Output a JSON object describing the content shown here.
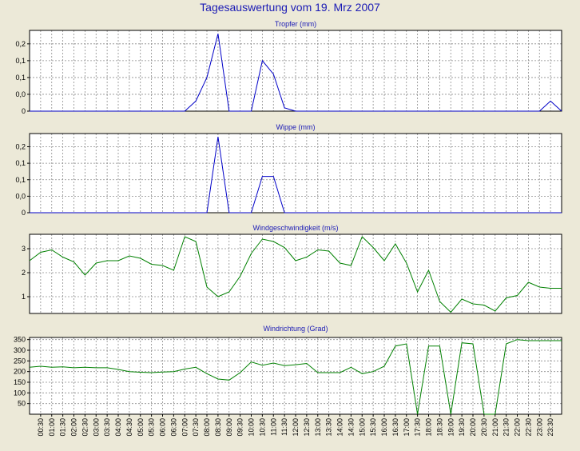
{
  "page": {
    "title": "Tagesauswertung vom 19. Mrz 2007"
  },
  "colors": {
    "background": "#ece9d8",
    "plot_background": "#ffffff",
    "grid": "#8c8c8c",
    "axis": "#000000",
    "title": "#1a1ab5",
    "rain_series": "#0000c8",
    "wind_series": "#008000"
  },
  "time_labels": [
    "00:30",
    "01:00",
    "01:30",
    "02:00",
    "02:30",
    "03:00",
    "03:30",
    "04:00",
    "04:30",
    "05:00",
    "05:30",
    "06:00",
    "06:30",
    "07:00",
    "07:30",
    "08:00",
    "08:30",
    "09:00",
    "09:30",
    "10:00",
    "10:30",
    "11:00",
    "11:30",
    "12:00",
    "12:30",
    "13:00",
    "13:30",
    "14:00",
    "14:30",
    "15:00",
    "15:30",
    "16:00",
    "16:30",
    "17:00",
    "17:30",
    "18:00",
    "18:30",
    "19:00",
    "19:30",
    "20:00",
    "20:30",
    "21:00",
    "21:30",
    "22:00",
    "22:30",
    "23:00",
    "23:30"
  ],
  "chart_data": [
    {
      "type": "line",
      "title": "Tropfer (mm)",
      "ylim": [
        0,
        0.24
      ],
      "yticks": [
        0,
        0.05,
        0.1,
        0.15,
        0.2
      ],
      "ytick_labels": [
        "0",
        "0,0",
        "0,1",
        "0,1",
        "0,2"
      ],
      "grid": true,
      "x": [
        "00:00",
        "00:30",
        "01:00",
        "01:30",
        "02:00",
        "02:30",
        "03:00",
        "03:30",
        "04:00",
        "04:30",
        "05:00",
        "05:30",
        "06:00",
        "06:30",
        "07:00",
        "07:30",
        "08:00",
        "08:30",
        "09:00",
        "09:30",
        "10:00",
        "10:30",
        "11:00",
        "11:30",
        "12:00",
        "12:30",
        "13:00",
        "13:30",
        "14:00",
        "14:30",
        "15:00",
        "15:30",
        "16:00",
        "16:30",
        "17:00",
        "17:30",
        "18:00",
        "18:30",
        "19:00",
        "19:30",
        "20:00",
        "20:30",
        "21:00",
        "21:30",
        "22:00",
        "22:30",
        "23:00",
        "23:30",
        "24:00"
      ],
      "series": [
        {
          "values": [
            0,
            0,
            0,
            0,
            0,
            0,
            0,
            0,
            0,
            0,
            0,
            0,
            0,
            0,
            0,
            0.03,
            0.1,
            0.23,
            0,
            0,
            0,
            0.15,
            0.11,
            0.01,
            0,
            0,
            0,
            0,
            0,
            0,
            0,
            0,
            0,
            0,
            0,
            0,
            0,
            0,
            0,
            0,
            0,
            0,
            0,
            0,
            0,
            0,
            0,
            0.03,
            0
          ]
        }
      ]
    },
    {
      "type": "line",
      "title": "Wippe (mm)",
      "ylim": [
        0,
        0.24
      ],
      "yticks": [
        0,
        0.05,
        0.1,
        0.15,
        0.2
      ],
      "ytick_labels": [
        "0",
        "0,0",
        "0,1",
        "0,1",
        "0,2"
      ],
      "grid": true,
      "x": [
        "00:00",
        "00:30",
        "01:00",
        "01:30",
        "02:00",
        "02:30",
        "03:00",
        "03:30",
        "04:00",
        "04:30",
        "05:00",
        "05:30",
        "06:00",
        "06:30",
        "07:00",
        "07:30",
        "08:00",
        "08:30",
        "09:00",
        "09:30",
        "10:00",
        "10:30",
        "11:00",
        "11:30",
        "12:00",
        "12:30",
        "13:00",
        "13:30",
        "14:00",
        "14:30",
        "15:00",
        "15:30",
        "16:00",
        "16:30",
        "17:00",
        "17:30",
        "18:00",
        "18:30",
        "19:00",
        "19:30",
        "20:00",
        "20:30",
        "21:00",
        "21:30",
        "22:00",
        "22:30",
        "23:00",
        "23:30",
        "24:00"
      ],
      "series": [
        {
          "values": [
            0,
            0,
            0,
            0,
            0,
            0,
            0,
            0,
            0,
            0,
            0,
            0,
            0,
            0,
            0,
            0,
            0,
            0.23,
            0,
            0,
            0,
            0.11,
            0.11,
            0,
            0,
            0,
            0,
            0,
            0,
            0,
            0,
            0,
            0,
            0,
            0,
            0,
            0,
            0,
            0,
            0,
            0,
            0,
            0,
            0,
            0,
            0,
            0,
            0,
            0
          ]
        }
      ]
    },
    {
      "type": "line",
      "title": "Windgeschwindigkeit (m/s)",
      "ylim": [
        0.3,
        3.6
      ],
      "yticks": [
        1,
        2,
        3
      ],
      "ytick_labels": [
        "1",
        "2",
        "3"
      ],
      "grid": true,
      "x": [
        "00:00",
        "00:30",
        "01:00",
        "01:30",
        "02:00",
        "02:30",
        "03:00",
        "03:30",
        "04:00",
        "04:30",
        "05:00",
        "05:30",
        "06:00",
        "06:30",
        "07:00",
        "07:30",
        "08:00",
        "08:30",
        "09:00",
        "09:30",
        "10:00",
        "10:30",
        "11:00",
        "11:30",
        "12:00",
        "12:30",
        "13:00",
        "13:30",
        "14:00",
        "14:30",
        "15:00",
        "15:30",
        "16:00",
        "16:30",
        "17:00",
        "17:30",
        "18:00",
        "18:30",
        "19:00",
        "19:30",
        "20:00",
        "20:30",
        "21:00",
        "21:30",
        "22:00",
        "22:30",
        "23:00",
        "23:30",
        "24:00"
      ],
      "series": [
        {
          "values": [
            2.5,
            2.85,
            2.95,
            2.65,
            2.45,
            1.9,
            2.4,
            2.5,
            2.5,
            2.7,
            2.6,
            2.35,
            2.3,
            2.1,
            3.5,
            3.3,
            1.4,
            1.0,
            1.2,
            1.85,
            2.8,
            3.4,
            3.3,
            3.05,
            2.5,
            2.65,
            2.95,
            2.9,
            2.4,
            2.3,
            3.5,
            3.05,
            2.5,
            3.2,
            2.4,
            1.2,
            2.1,
            0.8,
            0.35,
            0.9,
            0.7,
            0.65,
            0.4,
            0.95,
            1.05,
            1.6,
            1.4,
            1.35,
            1.35
          ]
        }
      ]
    },
    {
      "type": "line",
      "title": "Windrichtung (Grad)",
      "ylim": [
        0,
        360
      ],
      "yticks": [
        50,
        100,
        150,
        200,
        250,
        300,
        350
      ],
      "ytick_labels": [
        "50",
        "100",
        "150",
        "200",
        "250",
        "300",
        "350"
      ],
      "grid": true,
      "x": [
        "00:00",
        "00:30",
        "01:00",
        "01:30",
        "02:00",
        "02:30",
        "03:00",
        "03:30",
        "04:00",
        "04:30",
        "05:00",
        "05:30",
        "06:00",
        "06:30",
        "07:00",
        "07:30",
        "08:00",
        "08:30",
        "09:00",
        "09:30",
        "10:00",
        "10:30",
        "11:00",
        "11:30",
        "12:00",
        "12:30",
        "13:00",
        "13:30",
        "14:00",
        "14:30",
        "15:00",
        "15:30",
        "16:00",
        "16:30",
        "17:00",
        "17:30",
        "18:00",
        "18:30",
        "19:00",
        "19:30",
        "20:00",
        "20:30",
        "21:00",
        "21:30",
        "22:00",
        "22:30",
        "23:00",
        "23:30",
        "24:00"
      ],
      "series": [
        {
          "values": [
            220,
            225,
            220,
            222,
            218,
            220,
            218,
            218,
            210,
            200,
            197,
            195,
            198,
            200,
            212,
            220,
            190,
            165,
            160,
            195,
            245,
            230,
            240,
            228,
            232,
            238,
            195,
            195,
            195,
            220,
            190,
            200,
            225,
            320,
            330,
            0,
            320,
            320,
            0,
            335,
            330,
            0,
            0,
            330,
            350,
            345,
            345,
            345,
            345
          ]
        }
      ]
    }
  ]
}
